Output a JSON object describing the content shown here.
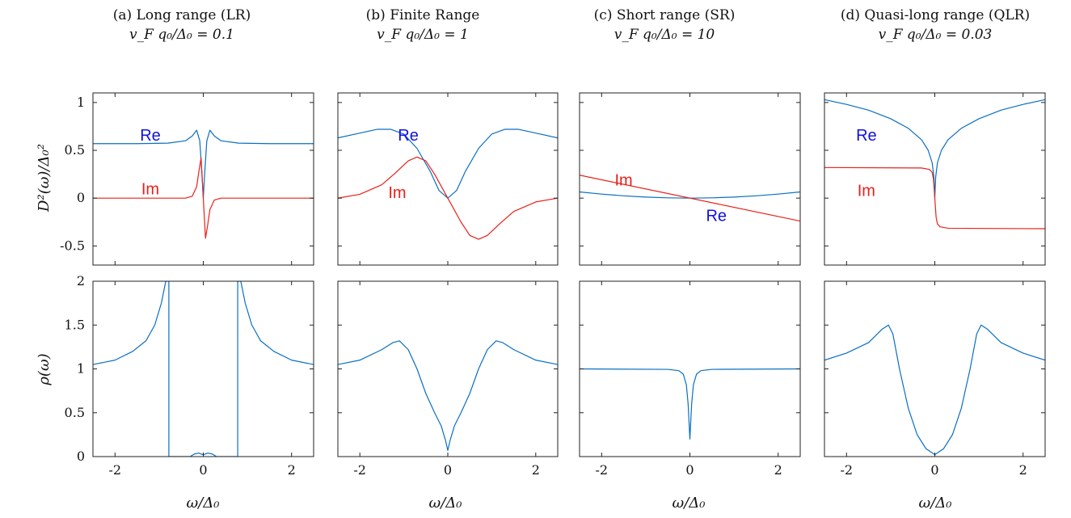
{
  "colors": {
    "re": "#0a6fc2",
    "im": "#e8201a",
    "label_re": "#1010e0",
    "label_im": "#e8201a",
    "axis": "#222222"
  },
  "rows": {
    "top": {
      "ylabel": "D²(ω)/Δ₀²",
      "ylim": [
        -0.7,
        1.1
      ],
      "yticks": [
        -0.5,
        0,
        0.5,
        1
      ],
      "ytick_labels": [
        "-0.5",
        "0",
        "0.5",
        "1"
      ]
    },
    "bottom": {
      "ylabel": "ρ(ω)",
      "ylim": [
        0,
        2
      ],
      "yticks": [
        0,
        0.5,
        1,
        1.5,
        2
      ],
      "ytick_labels": [
        "0",
        "0.5",
        "1",
        "1.5",
        "2"
      ]
    }
  },
  "xaxis": {
    "label": "ω/Δ₀",
    "xlim": [
      -2.5,
      2.5
    ],
    "xticks": [
      -2,
      0,
      2
    ],
    "xtick_labels": [
      "-2",
      "0",
      "2"
    ]
  },
  "columns": [
    {
      "title": "(a) Long range (LR)",
      "subtitle": "v_F q₀/Δ₀ = 0.1"
    },
    {
      "title": "(b) Finite Range",
      "subtitle": "v_F q₀/Δ₀ = 1"
    },
    {
      "title": "(c) Short range (SR)",
      "subtitle": "v_F q₀/Δ₀ = 10"
    },
    {
      "title": "(d) Quasi-long range (QLR)",
      "subtitle": "v_F q₀/Δ₀ = 0.03"
    }
  ],
  "chart_data": [
    {
      "type": "line",
      "panel": "a-top",
      "xlim": [
        -2.5,
        2.5
      ],
      "ylim": [
        -0.7,
        1.1
      ],
      "annotations": [
        {
          "text": "Re",
          "x": -1.2,
          "y": 0.66,
          "series": "Re"
        },
        {
          "text": "Im",
          "x": -1.2,
          "y": 0.1,
          "series": "Im"
        }
      ],
      "series": [
        {
          "name": "Re",
          "x": [
            -2.5,
            -1.5,
            -0.8,
            -0.4,
            -0.25,
            -0.15,
            -0.08,
            -0.03,
            0,
            0.03,
            0.08,
            0.15,
            0.25,
            0.4,
            0.8,
            1.5,
            2.5
          ],
          "y": [
            0.57,
            0.57,
            0.575,
            0.6,
            0.65,
            0.71,
            0.6,
            0.25,
            0.0,
            0.25,
            0.6,
            0.71,
            0.65,
            0.6,
            0.575,
            0.57,
            0.57
          ]
        },
        {
          "name": "Im",
          "x": [
            -2.5,
            -0.4,
            -0.25,
            -0.15,
            -0.1,
            -0.05,
            0,
            0.05,
            0.1,
            0.15,
            0.25,
            0.4,
            2.5
          ],
          "y": [
            0,
            0,
            0.02,
            0.12,
            0.28,
            0.42,
            0.0,
            -0.42,
            -0.28,
            -0.12,
            -0.02,
            0,
            0
          ]
        }
      ]
    },
    {
      "type": "line",
      "panel": "a-bottom",
      "xlim": [
        -2.5,
        2.5
      ],
      "ylim": [
        0,
        2
      ],
      "series": [
        {
          "name": "ρ",
          "x": [
            -2.5,
            -2.0,
            -1.6,
            -1.3,
            -1.1,
            -0.95,
            -0.85,
            -0.8,
            -0.78,
            -0.78,
            -0.3,
            -0.2,
            -0.1,
            0,
            0.1,
            0.2,
            0.3,
            0.78,
            0.78,
            0.8,
            0.85,
            0.95,
            1.1,
            1.3,
            1.6,
            2.0,
            2.5
          ],
          "y": [
            1.05,
            1.1,
            1.2,
            1.32,
            1.5,
            1.75,
            2.0,
            2.0,
            2.0,
            0,
            0,
            0.03,
            0.04,
            0.02,
            0.04,
            0.03,
            0,
            0,
            2.0,
            2.0,
            2.0,
            1.75,
            1.5,
            1.32,
            1.2,
            1.1,
            1.05
          ]
        }
      ]
    },
    {
      "type": "line",
      "panel": "b-top",
      "xlim": [
        -2.5,
        2.5
      ],
      "ylim": [
        -0.7,
        1.1
      ],
      "annotations": [
        {
          "text": "Re",
          "x": -0.9,
          "y": 0.66,
          "series": "Re"
        },
        {
          "text": "Im",
          "x": -1.15,
          "y": 0.06,
          "series": "Im"
        }
      ],
      "series": [
        {
          "name": "Re",
          "x": [
            -2.5,
            -2.0,
            -1.6,
            -1.3,
            -1.0,
            -0.7,
            -0.4,
            -0.2,
            0,
            0.2,
            0.4,
            0.7,
            1.0,
            1.3,
            1.6,
            2.0,
            2.5
          ],
          "y": [
            0.63,
            0.68,
            0.72,
            0.72,
            0.67,
            0.52,
            0.28,
            0.08,
            0.0,
            0.08,
            0.28,
            0.52,
            0.67,
            0.72,
            0.72,
            0.68,
            0.63
          ]
        },
        {
          "name": "Im",
          "x": [
            -2.5,
            -2.0,
            -1.5,
            -1.2,
            -0.9,
            -0.7,
            -0.5,
            -0.3,
            0,
            0.3,
            0.5,
            0.7,
            0.9,
            1.2,
            1.5,
            2.0,
            2.5
          ],
          "y": [
            0.0,
            0.04,
            0.14,
            0.26,
            0.39,
            0.43,
            0.39,
            0.25,
            0.0,
            -0.25,
            -0.39,
            -0.43,
            -0.39,
            -0.26,
            -0.14,
            -0.04,
            0.0
          ]
        }
      ]
    },
    {
      "type": "line",
      "panel": "b-bottom",
      "xlim": [
        -2.5,
        2.5
      ],
      "ylim": [
        0,
        2
      ],
      "series": [
        {
          "name": "ρ",
          "x": [
            -2.5,
            -2.0,
            -1.5,
            -1.25,
            -1.1,
            -0.9,
            -0.7,
            -0.5,
            -0.3,
            -0.15,
            -0.05,
            0,
            0.05,
            0.15,
            0.3,
            0.5,
            0.7,
            0.9,
            1.1,
            1.25,
            1.5,
            2.0,
            2.5
          ],
          "y": [
            1.05,
            1.1,
            1.22,
            1.3,
            1.32,
            1.22,
            1.0,
            0.72,
            0.5,
            0.35,
            0.18,
            0.07,
            0.18,
            0.35,
            0.5,
            0.72,
            1.0,
            1.22,
            1.32,
            1.3,
            1.22,
            1.1,
            1.05
          ]
        }
      ]
    },
    {
      "type": "line",
      "panel": "c-top",
      "xlim": [
        -2.5,
        2.5
      ],
      "ylim": [
        -0.7,
        1.1
      ],
      "annotations": [
        {
          "text": "Im",
          "x": -1.5,
          "y": 0.19,
          "series": "Im"
        },
        {
          "text": "Re",
          "x": 0.6,
          "y": -0.18,
          "series": "Re"
        }
      ],
      "series": [
        {
          "name": "Re",
          "x": [
            -2.5,
            -2.0,
            -1.5,
            -1.0,
            -0.5,
            0,
            0.5,
            1.0,
            1.5,
            2.0,
            2.5
          ],
          "y": [
            0.065,
            0.042,
            0.024,
            0.011,
            0.003,
            0.0,
            0.003,
            0.011,
            0.024,
            0.042,
            0.065
          ]
        },
        {
          "name": "Im",
          "x": [
            -2.5,
            2.5
          ],
          "y": [
            0.24,
            -0.24
          ]
        }
      ]
    },
    {
      "type": "line",
      "panel": "c-bottom",
      "xlim": [
        -2.5,
        2.5
      ],
      "ylim": [
        0,
        2
      ],
      "series": [
        {
          "name": "ρ",
          "x": [
            -2.5,
            -0.5,
            -0.25,
            -0.15,
            -0.08,
            -0.04,
            0,
            0.04,
            0.08,
            0.15,
            0.25,
            0.5,
            2.5
          ],
          "y": [
            1.0,
            0.995,
            0.98,
            0.94,
            0.82,
            0.6,
            0.2,
            0.6,
            0.82,
            0.94,
            0.98,
            0.995,
            1.0
          ]
        }
      ]
    },
    {
      "type": "line",
      "panel": "d-top",
      "xlim": [
        -2.5,
        2.5
      ],
      "ylim": [
        -0.7,
        1.1
      ],
      "annotations": [
        {
          "text": "Re",
          "x": -1.55,
          "y": 0.66,
          "series": "Re"
        },
        {
          "text": "Im",
          "x": -1.55,
          "y": 0.08,
          "series": "Im"
        }
      ],
      "series": [
        {
          "name": "Re",
          "x": [
            -2.5,
            -2.0,
            -1.5,
            -1.0,
            -0.6,
            -0.3,
            -0.15,
            -0.06,
            -0.02,
            0,
            0.02,
            0.06,
            0.15,
            0.3,
            0.6,
            1.0,
            1.5,
            2.0,
            2.5
          ],
          "y": [
            1.03,
            0.98,
            0.92,
            0.83,
            0.73,
            0.61,
            0.5,
            0.37,
            0.22,
            0.0,
            0.22,
            0.37,
            0.5,
            0.61,
            0.73,
            0.83,
            0.92,
            0.98,
            1.03
          ]
        },
        {
          "name": "Im",
          "x": [
            -2.5,
            -0.3,
            -0.12,
            -0.06,
            -0.03,
            0,
            0.03,
            0.06,
            0.12,
            0.3,
            2.5
          ],
          "y": [
            0.32,
            0.315,
            0.3,
            0.27,
            0.2,
            0.0,
            -0.2,
            -0.27,
            -0.3,
            -0.315,
            -0.32
          ]
        }
      ]
    },
    {
      "type": "line",
      "panel": "d-bottom",
      "xlim": [
        -2.5,
        2.5
      ],
      "ylim": [
        0,
        2
      ],
      "series": [
        {
          "name": "ρ",
          "x": [
            -2.5,
            -2.0,
            -1.5,
            -1.2,
            -1.05,
            -0.95,
            -0.8,
            -0.6,
            -0.4,
            -0.2,
            -0.08,
            0,
            0.08,
            0.2,
            0.4,
            0.6,
            0.8,
            0.95,
            1.05,
            1.2,
            1.5,
            2.0,
            2.5
          ],
          "y": [
            1.1,
            1.18,
            1.3,
            1.45,
            1.5,
            1.4,
            1.0,
            0.55,
            0.25,
            0.09,
            0.05,
            0.02,
            0.05,
            0.09,
            0.25,
            0.55,
            1.0,
            1.4,
            1.5,
            1.45,
            1.3,
            1.18,
            1.1
          ]
        }
      ]
    }
  ]
}
